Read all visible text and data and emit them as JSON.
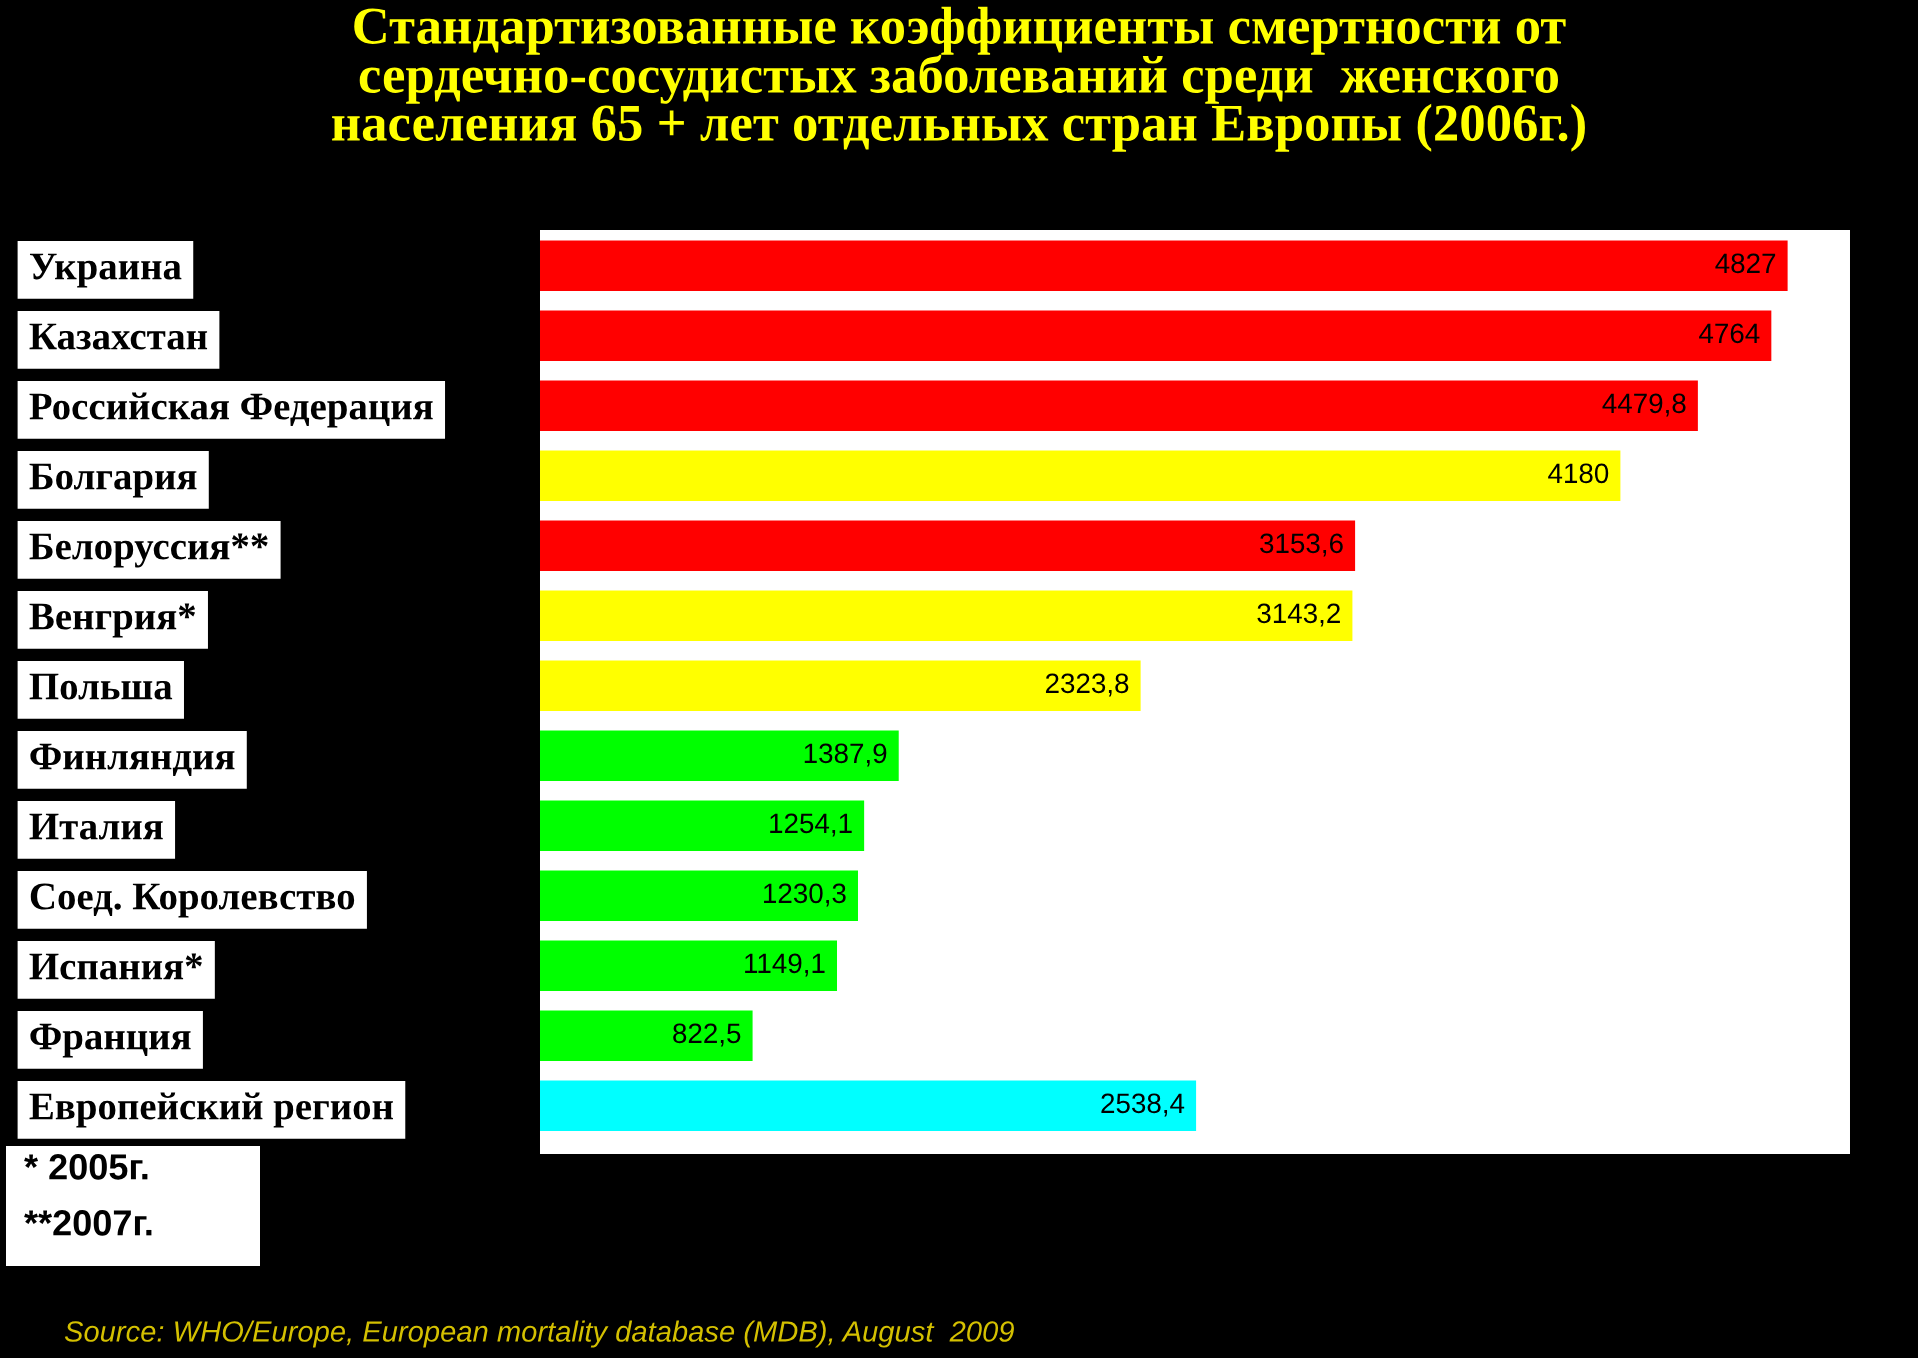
{
  "chart_data": {
    "type": "bar",
    "orientation": "horizontal",
    "title": "Стандартизованные коэффициенты смертности от\nсердечно-сосудистых заболеваний среди  женского\nнаселения 65 + лет отдельных стран Европы (2006г.)",
    "categories": [
      "Украина",
      "Казахстан",
      "Российская Федерация",
      "Болгария",
      "Белоруссия**",
      "Венгрия*",
      "Польша",
      "Финляндия",
      "Италия",
      "Соед. Королевство",
      "Испания*",
      "Франция",
      "Европейский регион"
    ],
    "values": [
      4827,
      4764,
      4479.8,
      4180,
      3153.6,
      3143.2,
      2323.8,
      1387.9,
      1254.1,
      1230.3,
      1149.1,
      822.5,
      2538.4
    ],
    "value_labels": [
      "4827",
      "4764",
      "4479,8",
      "4180",
      "3153,6",
      "3143,2",
      "2323,8",
      "1387,9",
      "1254,1",
      "1230,3",
      "1149,1",
      "822,5",
      "2538,4"
    ],
    "colors": [
      "#ff0000",
      "#ff0000",
      "#ff0000",
      "#ffff00",
      "#ff0000",
      "#ffff00",
      "#ffff00",
      "#00ff00",
      "#00ff00",
      "#00ff00",
      "#00ff00",
      "#00ff00",
      "#00ffff"
    ],
    "tick_labels": "y",
    "grid": false,
    "annotations": [
      "* 2005г.",
      "**2007г.",
      "Source: WHO/Europe, European mortality database (MDB), August  2009"
    ]
  }
}
